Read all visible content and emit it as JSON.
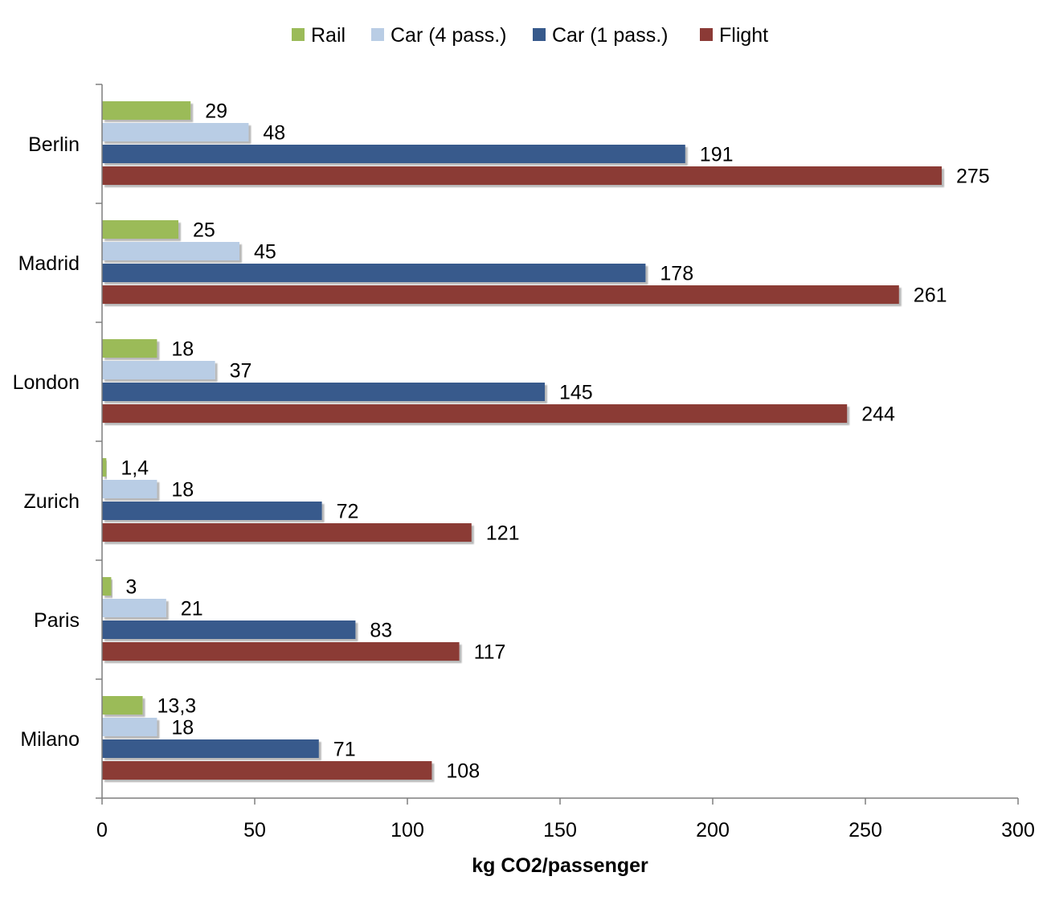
{
  "chart_data": {
    "type": "bar",
    "orientation": "horizontal",
    "categories": [
      "Berlin",
      "Madrid",
      "London",
      "Zurich",
      "Paris",
      "Milano"
    ],
    "series": [
      {
        "name": "Rail",
        "color": "#9BBB59",
        "values": [
          29,
          25,
          18,
          1.4,
          3,
          13.3
        ],
        "labels": [
          "29",
          "25",
          "18",
          "1,4",
          "3",
          "13,3"
        ]
      },
      {
        "name": "Car (4 pass.)",
        "color": "#B9CDE5",
        "values": [
          48,
          45,
          37,
          18,
          21,
          18
        ],
        "labels": [
          "48",
          "45",
          "37",
          "18",
          "21",
          "18"
        ]
      },
      {
        "name": "Car (1 pass.)",
        "color": "#375A8C",
        "values": [
          191,
          178,
          145,
          72,
          83,
          71
        ],
        "labels": [
          "191",
          "178",
          "145",
          "72",
          "83",
          "71"
        ]
      },
      {
        "name": "Flight",
        "color": "#8B3A36",
        "values": [
          275,
          261,
          244,
          121,
          117,
          108
        ],
        "labels": [
          "275",
          "261",
          "244",
          "121",
          "117",
          "108"
        ]
      }
    ],
    "xlabel": "kg CO2/passenger",
    "xlim": [
      0,
      300
    ],
    "xticks": [
      0,
      50,
      100,
      150,
      200,
      250,
      300
    ],
    "xtick_labels": [
      "0",
      "50",
      "100",
      "150",
      "200",
      "250",
      "300"
    ],
    "legend_position": "top-center",
    "grid": false,
    "data_labels": true
  }
}
